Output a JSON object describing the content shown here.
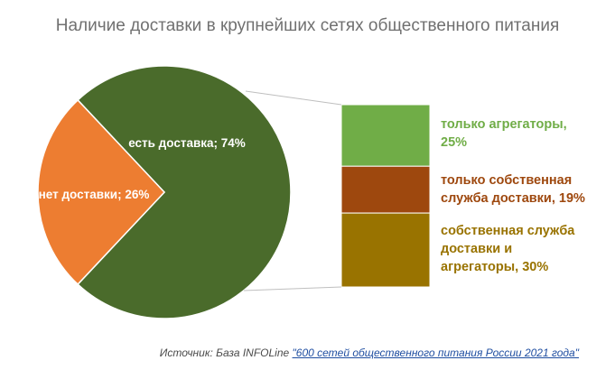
{
  "chart_data": {
    "type": "bar-of-pie",
    "title": "Наличие доставки в крупнейших сетях общественного питания",
    "pie": {
      "slices": [
        {
          "label": "есть доставка; 74%",
          "value": 74,
          "color": "#4a6b2b"
        },
        {
          "label": "нет доставки; 26%",
          "value": 26,
          "color": "#ed7d31"
        }
      ]
    },
    "bar": {
      "segments": [
        {
          "label_lines": [
            "только агрегаторы,",
            "25%"
          ],
          "value": 25,
          "color": "#70ad47"
        },
        {
          "label_lines": [
            "только собственная",
            "служба доставки, 19%"
          ],
          "value": 19,
          "color": "#9e480e"
        },
        {
          "label_lines": [
            "собственная служба",
            "доставки и",
            "агрегаторы, 30%"
          ],
          "value": 30,
          "color": "#997300"
        }
      ]
    }
  },
  "source": {
    "prefix": "Источник:  База INFOLine ",
    "link_text": "\"600  сетей общественного  питания  России 2021 года\""
  }
}
